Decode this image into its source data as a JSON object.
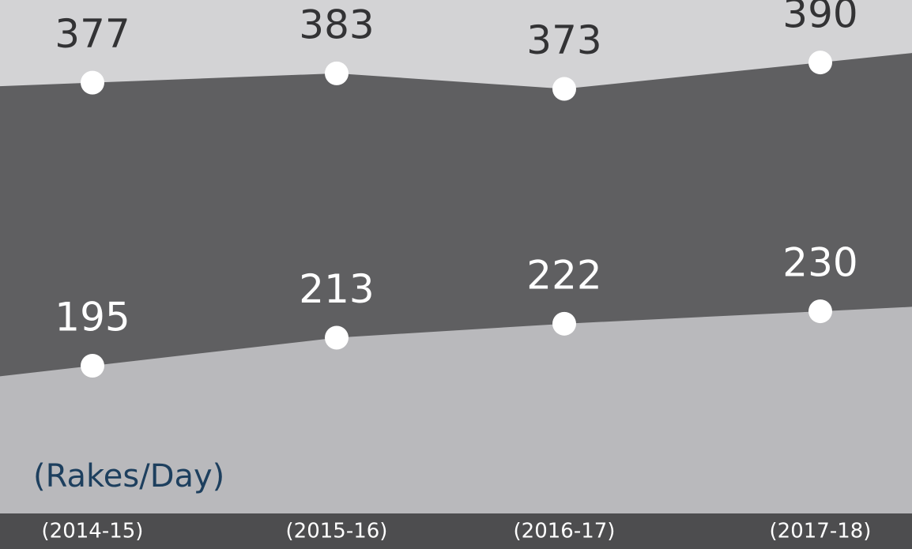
{
  "chart_data": {
    "type": "area",
    "unit_label": "(Rakes/Day)",
    "categories": [
      "(2014-15)",
      "(2015-16)",
      "(2016-17)",
      "(2017-18)"
    ],
    "series": [
      {
        "color": "#5f5f61",
        "values": [
          377,
          383,
          373,
          390
        ]
      },
      {
        "color": "#b9b9bc",
        "values": [
          195,
          213,
          222,
          230
        ]
      }
    ],
    "ylim": [
      100,
      420
    ]
  }
}
